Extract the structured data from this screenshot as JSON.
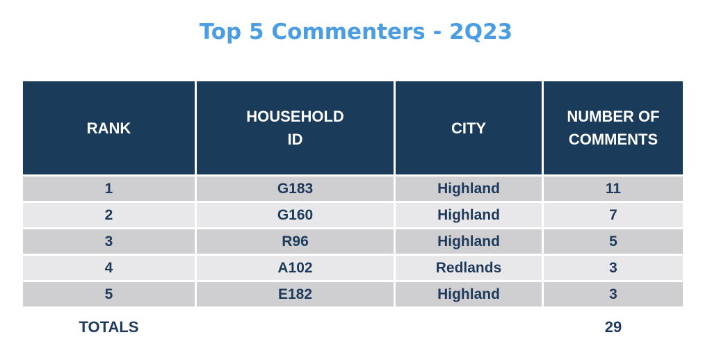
{
  "title": "Top 5 Commenters - 2Q23",
  "table": {
    "headers": {
      "rank": "RANK",
      "household_line1": "HOUSEHOLD",
      "household_line2": "ID",
      "city": "CITY",
      "comments_line1": "NUMBER OF",
      "comments_line2": "COMMENTS"
    },
    "rows": [
      {
        "rank": "1",
        "household_id": "G183",
        "city": "Highland",
        "comments": "11"
      },
      {
        "rank": "2",
        "household_id": "G160",
        "city": "Highland",
        "comments": "7"
      },
      {
        "rank": "3",
        "household_id": "R96",
        "city": "Highland",
        "comments": "5"
      },
      {
        "rank": "4",
        "household_id": "A102",
        "city": "Redlands",
        "comments": "3"
      },
      {
        "rank": "5",
        "household_id": "E182",
        "city": "Highland",
        "comments": "3"
      }
    ],
    "totals": {
      "label": "TOTALS",
      "value": "29"
    }
  },
  "colors": {
    "title": "#4a9ce3",
    "header_bg": "#1b3b5a",
    "header_text": "#ffffff",
    "row_odd": "#cfcfd1",
    "row_even": "#e8e8ea",
    "body_text": "#1e3a5a"
  }
}
